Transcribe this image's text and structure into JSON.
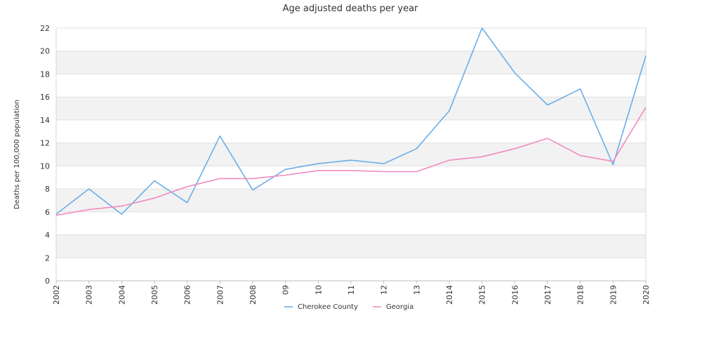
{
  "chart_data": {
    "type": "line",
    "title": "Age adjusted deaths per year",
    "xlabel": "",
    "ylabel": "Deaths per 100,000 population",
    "categories": [
      "2002",
      "2003",
      "2004",
      "2005",
      "2006",
      "2007",
      "2008",
      "09",
      "10",
      "11",
      "12",
      "13",
      "2014",
      "2015",
      "2016",
      "2017",
      "2018",
      "2019",
      "2020"
    ],
    "ylim": [
      0,
      22
    ],
    "yticks": [
      0,
      2,
      4,
      6,
      8,
      10,
      12,
      14,
      16,
      18,
      20,
      22
    ],
    "grid": true,
    "legend_position": "bottom",
    "series": [
      {
        "name": "Cherokee County",
        "color": "#6aaee8",
        "values": [
          5.8,
          8.0,
          5.8,
          8.7,
          6.8,
          12.6,
          7.9,
          9.7,
          10.2,
          10.5,
          10.2,
          11.5,
          14.8,
          22.0,
          18.1,
          15.3,
          16.7,
          10.1,
          19.6
        ]
      },
      {
        "name": "Georgia",
        "color": "#f08cbf",
        "values": [
          5.7,
          6.2,
          6.5,
          7.2,
          8.2,
          8.9,
          8.9,
          9.2,
          9.6,
          9.6,
          9.5,
          9.5,
          10.5,
          10.8,
          11.5,
          12.4,
          10.9,
          10.4,
          15.1
        ]
      }
    ]
  }
}
